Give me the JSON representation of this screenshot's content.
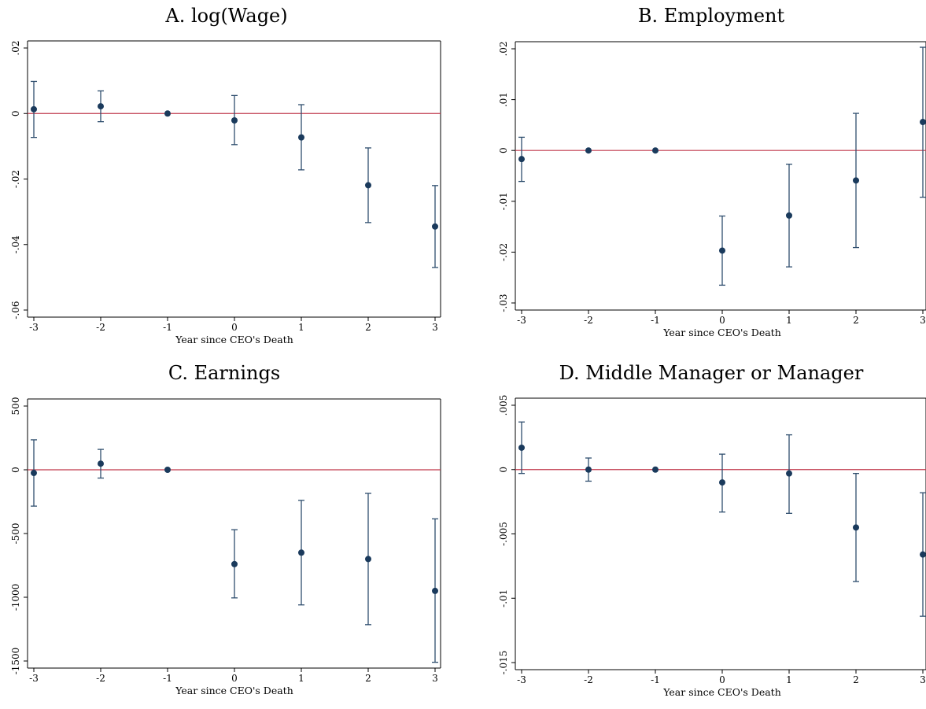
{
  "chart_data": [
    {
      "type": "scatter",
      "title": "A. log(Wage)",
      "xlabel": "Year since CEO's Death",
      "ylabel": "",
      "xlim": [
        -3,
        3
      ],
      "ylim": [
        -0.06,
        0.02
      ],
      "x_ticks": [
        -3,
        -2,
        -1,
        0,
        1,
        2,
        3
      ],
      "x_tick_labels": [
        "-3",
        "-2",
        "-1",
        "0",
        "1",
        "2",
        "3"
      ],
      "y_ticks": [
        0.02,
        0,
        -0.02,
        -0.04,
        -0.06
      ],
      "y_tick_labels": [
        ".02",
        "0",
        "-.02",
        "-.04",
        "-.06"
      ],
      "reference_line": 0,
      "points": [
        {
          "x": -3,
          "y": 0.0013,
          "lo": -0.0073,
          "hi": 0.0098
        },
        {
          "x": -2,
          "y": 0.0022,
          "lo": -0.0025,
          "hi": 0.0069
        },
        {
          "x": -1,
          "y": 0.0,
          "lo": 0.0,
          "hi": 0.0
        },
        {
          "x": 0,
          "y": -0.0021,
          "lo": -0.0095,
          "hi": 0.0055
        },
        {
          "x": 1,
          "y": -0.0073,
          "lo": -0.0172,
          "hi": 0.0027
        },
        {
          "x": 2,
          "y": -0.0219,
          "lo": -0.0333,
          "hi": -0.0105
        },
        {
          "x": 3,
          "y": -0.0345,
          "lo": -0.047,
          "hi": -0.022
        }
      ]
    },
    {
      "type": "scatter",
      "title": "B. Employment",
      "xlabel": "Year since CEO's Death",
      "ylabel": "",
      "xlim": [
        -3,
        3
      ],
      "ylim": [
        -0.03,
        0.02
      ],
      "x_ticks": [
        -3,
        -2,
        -1,
        0,
        1,
        2,
        3
      ],
      "x_tick_labels": [
        "-3",
        "-2",
        "-1",
        "0",
        "1",
        "2",
        "3"
      ],
      "y_ticks": [
        0.02,
        0.01,
        0,
        -0.01,
        -0.02,
        -0.03
      ],
      "y_tick_labels": [
        ".02",
        ".01",
        "0",
        "-.01",
        "-.02",
        "-.03"
      ],
      "reference_line": 0,
      "points": [
        {
          "x": -3,
          "y": -0.0017,
          "lo": -0.0061,
          "hi": 0.0026
        },
        {
          "x": -2,
          "y": 0.0,
          "lo": 0.0,
          "hi": 0.0
        },
        {
          "x": -1,
          "y": 0.0,
          "lo": 0.0,
          "hi": 0.0
        },
        {
          "x": 0,
          "y": -0.0197,
          "lo": -0.0265,
          "hi": -0.0129
        },
        {
          "x": 1,
          "y": -0.0128,
          "lo": -0.0229,
          "hi": -0.0027
        },
        {
          "x": 2,
          "y": -0.0059,
          "lo": -0.0191,
          "hi": 0.0073
        },
        {
          "x": 3,
          "y": 0.0056,
          "lo": -0.0092,
          "hi": 0.0203
        }
      ]
    },
    {
      "type": "scatter",
      "title": "C. Earnings",
      "xlabel": "Year since CEO's Death",
      "ylabel": "",
      "xlim": [
        -3,
        3
      ],
      "ylim": [
        -1500,
        500
      ],
      "x_ticks": [
        -3,
        -2,
        -1,
        0,
        1,
        2,
        3
      ],
      "x_tick_labels": [
        "-3",
        "-2",
        "-1",
        "0",
        "1",
        "2",
        "3"
      ],
      "y_ticks": [
        500,
        0,
        -500,
        -1000,
        -1500
      ],
      "y_tick_labels": [
        "500",
        "0",
        "-500",
        "-1000",
        "-1500"
      ],
      "reference_line": 0,
      "points": [
        {
          "x": -3,
          "y": -25,
          "lo": -285,
          "hi": 235
        },
        {
          "x": -2,
          "y": 48,
          "lo": -65,
          "hi": 160
        },
        {
          "x": -1,
          "y": 0,
          "lo": 0,
          "hi": 0
        },
        {
          "x": 0,
          "y": -740,
          "lo": -1005,
          "hi": -470
        },
        {
          "x": 1,
          "y": -650,
          "lo": -1060,
          "hi": -240
        },
        {
          "x": 2,
          "y": -700,
          "lo": -1215,
          "hi": -185
        },
        {
          "x": 3,
          "y": -950,
          "lo": -1510,
          "hi": -385
        }
      ]
    },
    {
      "type": "scatter",
      "title": "D. Middle Manager or Manager",
      "xlabel": "Year since CEO's Death",
      "ylabel": "",
      "xlim": [
        -3,
        3
      ],
      "ylim": [
        -0.015,
        0.005
      ],
      "x_ticks": [
        -3,
        -2,
        -1,
        0,
        1,
        2,
        3
      ],
      "x_tick_labels": [
        "-3",
        "-2",
        "-1",
        "0",
        "1",
        "2",
        "3"
      ],
      "y_ticks": [
        0.005,
        0,
        -0.005,
        -0.01,
        -0.015
      ],
      "y_tick_labels": [
        ".005",
        "0",
        "-.005",
        "-.01",
        "-.015"
      ],
      "reference_line": 0,
      "points": [
        {
          "x": -3,
          "y": 0.0017,
          "lo": -0.0003,
          "hi": 0.0037
        },
        {
          "x": -2,
          "y": 0.0,
          "lo": -0.0009,
          "hi": 0.0009
        },
        {
          "x": -1,
          "y": 0.0,
          "lo": 0.0,
          "hi": 0.0
        },
        {
          "x": 0,
          "y": -0.001,
          "lo": -0.0033,
          "hi": 0.0012
        },
        {
          "x": 1,
          "y": -0.0003,
          "lo": -0.0034,
          "hi": 0.0027
        },
        {
          "x": 2,
          "y": -0.0045,
          "lo": -0.0087,
          "hi": -0.0003
        },
        {
          "x": 3,
          "y": -0.0066,
          "lo": -0.0114,
          "hi": -0.0018
        }
      ]
    }
  ],
  "colors": {
    "marker": "#1a3a5c",
    "ci": "#2f4e6e",
    "reference_line": "#c0394b",
    "axis": "#000000"
  }
}
